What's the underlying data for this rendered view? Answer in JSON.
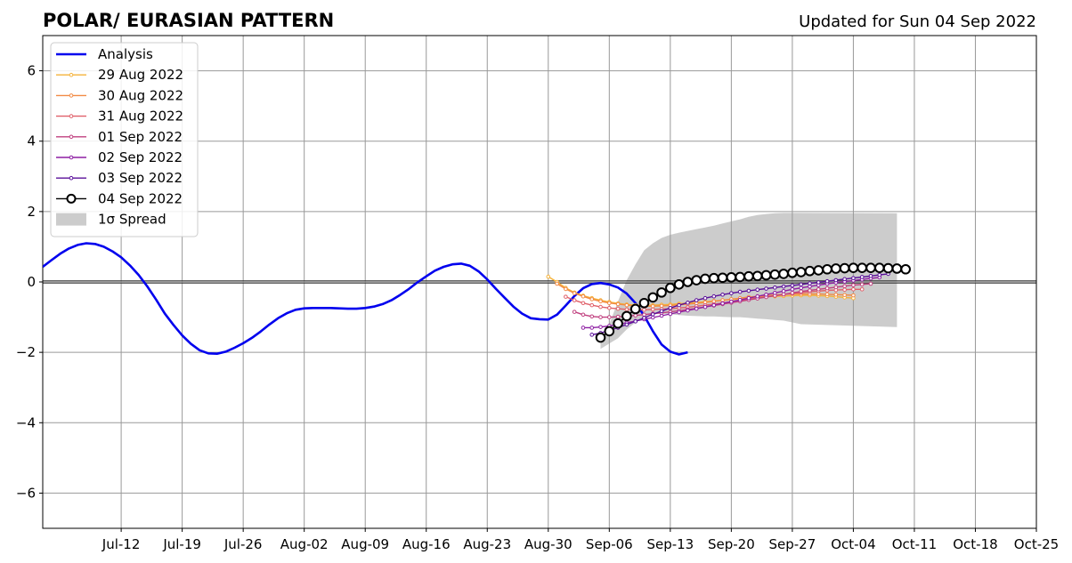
{
  "chart_data": {
    "type": "line",
    "title": "POLAR/ EURASIAN  PATTERN",
    "subtitle": "Updated for Sun 04 Sep 2022",
    "xlabel": "",
    "ylabel": "",
    "x_range": [
      "2022-07-03",
      "2022-10-25"
    ],
    "ylim": [
      -7,
      7
    ],
    "yticks": [
      -6,
      -4,
      -2,
      0,
      2,
      4,
      6
    ],
    "ytick_labels": [
      "−6",
      "−4",
      "−2",
      "0",
      "2",
      "4",
      "6"
    ],
    "xticks": [
      "2022-07-12",
      "2022-07-19",
      "2022-07-26",
      "2022-08-02",
      "2022-08-09",
      "2022-08-16",
      "2022-08-23",
      "2022-08-30",
      "2022-09-06",
      "2022-09-13",
      "2022-09-20",
      "2022-09-27",
      "2022-10-04",
      "2022-10-11",
      "2022-10-18",
      "2022-10-25"
    ],
    "xtick_labels": [
      "Jul-12",
      "Jul-19",
      "Jul-26",
      "Aug-02",
      "Aug-09",
      "Aug-16",
      "Aug-23",
      "Aug-30",
      "Sep-06",
      "Sep-13",
      "Sep-20",
      "Sep-27",
      "Oct-04",
      "Oct-11",
      "Oct-18",
      "Oct-25"
    ],
    "grid": true,
    "zero_line": true,
    "legend_position": "upper-left",
    "legend": [
      "Analysis",
      "29 Aug 2022",
      "30 Aug 2022",
      "31 Aug 2022",
      "01 Sep 2022",
      "02 Sep 2022",
      "03 Sep 2022",
      "04 Sep 2022",
      "1σ Spread"
    ],
    "analysis": {
      "name": "Analysis",
      "color": "#0000ee",
      "start_date": "2022-07-03",
      "values": [
        0.43,
        0.62,
        0.8,
        0.95,
        1.05,
        1.1,
        1.08,
        1.0,
        0.87,
        0.7,
        0.47,
        0.2,
        -0.13,
        -0.5,
        -0.9,
        -1.22,
        -1.52,
        -1.76,
        -1.94,
        -2.03,
        -2.04,
        -1.98,
        -1.87,
        -1.74,
        -1.59,
        -1.41,
        -1.21,
        -1.03,
        -0.89,
        -0.79,
        -0.75,
        -0.74,
        -0.74,
        -0.74,
        -0.75,
        -0.76,
        -0.76,
        -0.74,
        -0.7,
        -0.63,
        -0.52,
        -0.37,
        -0.2,
        -0.01,
        0.16,
        0.32,
        0.43,
        0.5,
        0.52,
        0.46,
        0.3,
        0.07,
        -0.2,
        -0.45,
        -0.7,
        -0.9,
        -1.03,
        -1.06,
        -1.07,
        -0.93,
        -0.67,
        -0.4,
        -0.18,
        -0.06,
        -0.03,
        -0.07,
        -0.16,
        -0.33,
        -0.6,
        -0.96,
        -1.4,
        -1.78,
        -1.98,
        -2.06,
        -2.0
      ]
    },
    "forecasts": [
      {
        "name": "29 Aug 2022",
        "color": "#f5b23a",
        "start_date": "2022-08-30",
        "values": [
          0.15,
          0.0,
          -0.17,
          -0.3,
          -0.39,
          -0.46,
          -0.52,
          -0.57,
          -0.61,
          -0.64,
          -0.66,
          -0.67,
          -0.66,
          -0.65,
          -0.64,
          -0.62,
          -0.6,
          -0.58,
          -0.56,
          -0.54,
          -0.52,
          -0.5,
          -0.48,
          -0.46,
          -0.44,
          -0.42,
          -0.41,
          -0.4,
          -0.39,
          -0.38,
          -0.38,
          -0.39,
          -0.4,
          -0.42,
          -0.44,
          -0.46
        ]
      },
      {
        "name": "30 Aug 2022",
        "color": "#f28a45",
        "start_date": "2022-08-31",
        "values": [
          -0.05,
          -0.2,
          -0.32,
          -0.41,
          -0.49,
          -0.55,
          -0.6,
          -0.63,
          -0.66,
          -0.68,
          -0.69,
          -0.69,
          -0.68,
          -0.67,
          -0.65,
          -0.63,
          -0.61,
          -0.58,
          -0.55,
          -0.52,
          -0.49,
          -0.46,
          -0.43,
          -0.41,
          -0.39,
          -0.37,
          -0.35,
          -0.34,
          -0.34,
          -0.34,
          -0.34,
          -0.35,
          -0.36,
          -0.37,
          -0.38
        ]
      },
      {
        "name": "31 Aug 2022",
        "color": "#e0606a",
        "start_date": "2022-09-01",
        "values": [
          -0.42,
          -0.52,
          -0.6,
          -0.66,
          -0.71,
          -0.74,
          -0.76,
          -0.78,
          -0.79,
          -0.79,
          -0.78,
          -0.77,
          -0.76,
          -0.74,
          -0.72,
          -0.69,
          -0.66,
          -0.63,
          -0.6,
          -0.56,
          -0.53,
          -0.49,
          -0.46,
          -0.42,
          -0.39,
          -0.36,
          -0.33,
          -0.3,
          -0.28,
          -0.26,
          -0.24,
          -0.23,
          -0.22,
          -0.21,
          -0.21
        ]
      },
      {
        "name": "01 Sep 2022",
        "color": "#c0407f",
        "start_date": "2022-09-02",
        "values": [
          -0.85,
          -0.93,
          -0.98,
          -1.0,
          -1.0,
          -0.99,
          -0.97,
          -0.95,
          -0.93,
          -0.9,
          -0.88,
          -0.85,
          -0.82,
          -0.78,
          -0.75,
          -0.71,
          -0.67,
          -0.63,
          -0.59,
          -0.55,
          -0.51,
          -0.47,
          -0.43,
          -0.39,
          -0.35,
          -0.31,
          -0.27,
          -0.24,
          -0.21,
          -0.18,
          -0.15,
          -0.12,
          -0.09,
          -0.07,
          -0.05
        ]
      },
      {
        "name": "02 Sep 2022",
        "color": "#8e1fa3",
        "start_date": "2022-09-03",
        "values": [
          -1.3,
          -1.3,
          -1.28,
          -1.25,
          -1.21,
          -1.16,
          -1.11,
          -1.06,
          -1.01,
          -0.96,
          -0.91,
          -0.86,
          -0.81,
          -0.76,
          -0.71,
          -0.66,
          -0.61,
          -0.56,
          -0.51,
          -0.46,
          -0.41,
          -0.36,
          -0.31,
          -0.26,
          -0.21,
          -0.17,
          -0.13,
          -0.09,
          -0.05,
          -0.02,
          0.01,
          0.04,
          0.07,
          0.1,
          0.13
        ]
      },
      {
        "name": "03 Sep 2022",
        "color": "#5a0f9a",
        "start_date": "2022-09-04",
        "values": [
          -1.5,
          -1.45,
          -1.38,
          -1.3,
          -1.21,
          -1.12,
          -1.02,
          -0.92,
          -0.83,
          -0.74,
          -0.66,
          -0.59,
          -0.52,
          -0.46,
          -0.41,
          -0.36,
          -0.32,
          -0.28,
          -0.25,
          -0.22,
          -0.19,
          -0.16,
          -0.13,
          -0.1,
          -0.07,
          -0.04,
          -0.01,
          0.02,
          0.05,
          0.08,
          0.11,
          0.14,
          0.17,
          0.2,
          0.23
        ]
      }
    ],
    "current": {
      "name": "04 Sep 2022",
      "color": "#000000",
      "start_date": "2022-09-05",
      "values": [
        -1.58,
        -1.4,
        -1.18,
        -0.97,
        -0.77,
        -0.6,
        -0.44,
        -0.3,
        -0.17,
        -0.07,
        0.0,
        0.05,
        0.09,
        0.11,
        0.12,
        0.13,
        0.14,
        0.16,
        0.17,
        0.19,
        0.21,
        0.23,
        0.26,
        0.28,
        0.31,
        0.33,
        0.36,
        0.38,
        0.39,
        0.4,
        0.4,
        0.4,
        0.4,
        0.39,
        0.38,
        0.36
      ]
    },
    "spread": {
      "name": "1σ Spread",
      "color": "#cccccc",
      "start_date": "2022-09-05",
      "upper": [
        -1.75,
        -1.2,
        -0.55,
        0.05,
        0.5,
        0.9,
        1.1,
        1.25,
        1.34,
        1.4,
        1.45,
        1.5,
        1.55,
        1.6,
        1.66,
        1.72,
        1.78,
        1.85,
        1.9,
        1.93,
        1.95,
        1.96,
        1.96,
        1.96,
        1.95
      ],
      "lower": [
        -1.9,
        -1.75,
        -1.6,
        -1.35,
        -1.15,
        -1.0,
        -0.92,
        -0.9,
        -0.92,
        -0.94,
        -0.96,
        -0.97,
        -0.98,
        -0.98,
        -0.99,
        -1.0,
        -1.0,
        -1.02,
        -1.04,
        -1.06,
        -1.08,
        -1.1,
        -1.15,
        -1.2,
        -1.28
      ],
      "x_days": [
        0,
        1,
        2,
        3,
        4,
        5,
        6,
        7,
        8,
        9,
        10,
        11,
        12,
        13,
        14,
        15,
        16,
        17,
        18,
        19,
        20,
        21,
        22,
        23,
        34
      ]
    }
  }
}
